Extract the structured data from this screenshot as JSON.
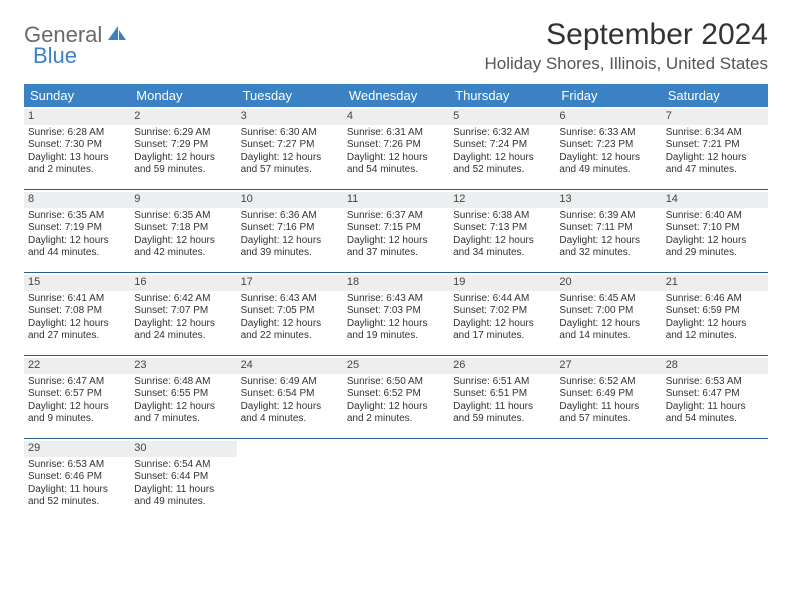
{
  "logo": {
    "part1": "General",
    "part2": "Blue"
  },
  "title": "September 2024",
  "location": "Holiday Shores, Illinois, United States",
  "colors": {
    "header_bg": "#3a82c4",
    "header_text": "#ffffff",
    "daynum_bg": "#eceef0",
    "row_border": "#2b5d8a",
    "body_text": "#333333",
    "logo_gray": "#6a6a6a",
    "logo_blue": "#3a82c4"
  },
  "day_headers": [
    "Sunday",
    "Monday",
    "Tuesday",
    "Wednesday",
    "Thursday",
    "Friday",
    "Saturday"
  ],
  "weeks": [
    [
      {
        "n": "1",
        "sr": "Sunrise: 6:28 AM",
        "ss": "Sunset: 7:30 PM",
        "dl1": "Daylight: 13 hours",
        "dl2": "and 2 minutes."
      },
      {
        "n": "2",
        "sr": "Sunrise: 6:29 AM",
        "ss": "Sunset: 7:29 PM",
        "dl1": "Daylight: 12 hours",
        "dl2": "and 59 minutes."
      },
      {
        "n": "3",
        "sr": "Sunrise: 6:30 AM",
        "ss": "Sunset: 7:27 PM",
        "dl1": "Daylight: 12 hours",
        "dl2": "and 57 minutes."
      },
      {
        "n": "4",
        "sr": "Sunrise: 6:31 AM",
        "ss": "Sunset: 7:26 PM",
        "dl1": "Daylight: 12 hours",
        "dl2": "and 54 minutes."
      },
      {
        "n": "5",
        "sr": "Sunrise: 6:32 AM",
        "ss": "Sunset: 7:24 PM",
        "dl1": "Daylight: 12 hours",
        "dl2": "and 52 minutes."
      },
      {
        "n": "6",
        "sr": "Sunrise: 6:33 AM",
        "ss": "Sunset: 7:23 PM",
        "dl1": "Daylight: 12 hours",
        "dl2": "and 49 minutes."
      },
      {
        "n": "7",
        "sr": "Sunrise: 6:34 AM",
        "ss": "Sunset: 7:21 PM",
        "dl1": "Daylight: 12 hours",
        "dl2": "and 47 minutes."
      }
    ],
    [
      {
        "n": "8",
        "sr": "Sunrise: 6:35 AM",
        "ss": "Sunset: 7:19 PM",
        "dl1": "Daylight: 12 hours",
        "dl2": "and 44 minutes."
      },
      {
        "n": "9",
        "sr": "Sunrise: 6:35 AM",
        "ss": "Sunset: 7:18 PM",
        "dl1": "Daylight: 12 hours",
        "dl2": "and 42 minutes."
      },
      {
        "n": "10",
        "sr": "Sunrise: 6:36 AM",
        "ss": "Sunset: 7:16 PM",
        "dl1": "Daylight: 12 hours",
        "dl2": "and 39 minutes."
      },
      {
        "n": "11",
        "sr": "Sunrise: 6:37 AM",
        "ss": "Sunset: 7:15 PM",
        "dl1": "Daylight: 12 hours",
        "dl2": "and 37 minutes."
      },
      {
        "n": "12",
        "sr": "Sunrise: 6:38 AM",
        "ss": "Sunset: 7:13 PM",
        "dl1": "Daylight: 12 hours",
        "dl2": "and 34 minutes."
      },
      {
        "n": "13",
        "sr": "Sunrise: 6:39 AM",
        "ss": "Sunset: 7:11 PM",
        "dl1": "Daylight: 12 hours",
        "dl2": "and 32 minutes."
      },
      {
        "n": "14",
        "sr": "Sunrise: 6:40 AM",
        "ss": "Sunset: 7:10 PM",
        "dl1": "Daylight: 12 hours",
        "dl2": "and 29 minutes."
      }
    ],
    [
      {
        "n": "15",
        "sr": "Sunrise: 6:41 AM",
        "ss": "Sunset: 7:08 PM",
        "dl1": "Daylight: 12 hours",
        "dl2": "and 27 minutes."
      },
      {
        "n": "16",
        "sr": "Sunrise: 6:42 AM",
        "ss": "Sunset: 7:07 PM",
        "dl1": "Daylight: 12 hours",
        "dl2": "and 24 minutes."
      },
      {
        "n": "17",
        "sr": "Sunrise: 6:43 AM",
        "ss": "Sunset: 7:05 PM",
        "dl1": "Daylight: 12 hours",
        "dl2": "and 22 minutes."
      },
      {
        "n": "18",
        "sr": "Sunrise: 6:43 AM",
        "ss": "Sunset: 7:03 PM",
        "dl1": "Daylight: 12 hours",
        "dl2": "and 19 minutes."
      },
      {
        "n": "19",
        "sr": "Sunrise: 6:44 AM",
        "ss": "Sunset: 7:02 PM",
        "dl1": "Daylight: 12 hours",
        "dl2": "and 17 minutes."
      },
      {
        "n": "20",
        "sr": "Sunrise: 6:45 AM",
        "ss": "Sunset: 7:00 PM",
        "dl1": "Daylight: 12 hours",
        "dl2": "and 14 minutes."
      },
      {
        "n": "21",
        "sr": "Sunrise: 6:46 AM",
        "ss": "Sunset: 6:59 PM",
        "dl1": "Daylight: 12 hours",
        "dl2": "and 12 minutes."
      }
    ],
    [
      {
        "n": "22",
        "sr": "Sunrise: 6:47 AM",
        "ss": "Sunset: 6:57 PM",
        "dl1": "Daylight: 12 hours",
        "dl2": "and 9 minutes."
      },
      {
        "n": "23",
        "sr": "Sunrise: 6:48 AM",
        "ss": "Sunset: 6:55 PM",
        "dl1": "Daylight: 12 hours",
        "dl2": "and 7 minutes."
      },
      {
        "n": "24",
        "sr": "Sunrise: 6:49 AM",
        "ss": "Sunset: 6:54 PM",
        "dl1": "Daylight: 12 hours",
        "dl2": "and 4 minutes."
      },
      {
        "n": "25",
        "sr": "Sunrise: 6:50 AM",
        "ss": "Sunset: 6:52 PM",
        "dl1": "Daylight: 12 hours",
        "dl2": "and 2 minutes."
      },
      {
        "n": "26",
        "sr": "Sunrise: 6:51 AM",
        "ss": "Sunset: 6:51 PM",
        "dl1": "Daylight: 11 hours",
        "dl2": "and 59 minutes."
      },
      {
        "n": "27",
        "sr": "Sunrise: 6:52 AM",
        "ss": "Sunset: 6:49 PM",
        "dl1": "Daylight: 11 hours",
        "dl2": "and 57 minutes."
      },
      {
        "n": "28",
        "sr": "Sunrise: 6:53 AM",
        "ss": "Sunset: 6:47 PM",
        "dl1": "Daylight: 11 hours",
        "dl2": "and 54 minutes."
      }
    ],
    [
      {
        "n": "29",
        "sr": "Sunrise: 6:53 AM",
        "ss": "Sunset: 6:46 PM",
        "dl1": "Daylight: 11 hours",
        "dl2": "and 52 minutes."
      },
      {
        "n": "30",
        "sr": "Sunrise: 6:54 AM",
        "ss": "Sunset: 6:44 PM",
        "dl1": "Daylight: 11 hours",
        "dl2": "and 49 minutes."
      },
      {
        "empty": true
      },
      {
        "empty": true
      },
      {
        "empty": true
      },
      {
        "empty": true
      },
      {
        "empty": true
      }
    ]
  ]
}
